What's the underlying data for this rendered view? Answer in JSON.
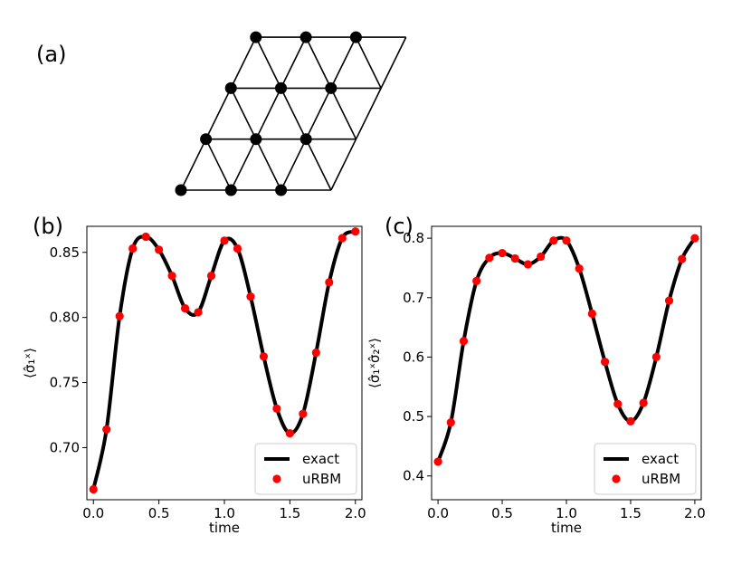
{
  "panels": {
    "a": "(a)",
    "b": "(b)",
    "c": "(c)"
  },
  "lattice": {
    "description_rows": [
      {
        "sites": 3,
        "filled": true
      },
      {
        "sites": 3,
        "filled": true
      },
      {
        "sites": 3,
        "filled": true
      },
      {
        "sites": 3,
        "filled": true
      }
    ],
    "colors": {
      "edge": "#000000",
      "site": "#000000"
    }
  },
  "chart_data": [
    {
      "type": "line",
      "panel": "(b)",
      "xlabel": "time",
      "ylabel": "⟨σ̂₁ˣ⟩",
      "xlim": [
        -0.05,
        2.05
      ],
      "ylim": [
        0.66,
        0.87
      ],
      "xticks": [
        0.0,
        0.5,
        1.0,
        1.5,
        2.0
      ],
      "xtick_labels": [
        "0.0",
        "0.5",
        "1.0",
        "1.5",
        "2.0"
      ],
      "yticks": [
        0.7,
        0.75,
        0.8,
        0.85
      ],
      "ytick_labels": [
        "0.70",
        "0.75",
        "0.80",
        "0.85"
      ],
      "legend_position": "bottom-right",
      "series": [
        {
          "name": "exact",
          "style": "line",
          "color": "#000000",
          "x": [
            0.0,
            0.1,
            0.2,
            0.3,
            0.4,
            0.5,
            0.6,
            0.7,
            0.8,
            0.9,
            1.0,
            1.1,
            1.2,
            1.3,
            1.4,
            1.5,
            1.6,
            1.7,
            1.8,
            1.9,
            2.0
          ],
          "values": [
            0.668,
            0.714,
            0.801,
            0.853,
            0.862,
            0.852,
            0.832,
            0.807,
            0.804,
            0.832,
            0.859,
            0.853,
            0.816,
            0.77,
            0.73,
            0.711,
            0.726,
            0.773,
            0.827,
            0.861,
            0.866
          ]
        },
        {
          "name": "uRBM",
          "style": "marker",
          "color": "#ff0000",
          "x": [
            0.0,
            0.1,
            0.2,
            0.3,
            0.4,
            0.5,
            0.6,
            0.7,
            0.8,
            0.9,
            1.0,
            1.1,
            1.2,
            1.3,
            1.4,
            1.5,
            1.6,
            1.7,
            1.8,
            1.9,
            2.0
          ],
          "values": [
            0.668,
            0.714,
            0.801,
            0.853,
            0.862,
            0.852,
            0.832,
            0.807,
            0.804,
            0.832,
            0.859,
            0.853,
            0.816,
            0.77,
            0.73,
            0.711,
            0.726,
            0.773,
            0.827,
            0.861,
            0.866
          ]
        }
      ]
    },
    {
      "type": "line",
      "panel": "(c)",
      "xlabel": "time",
      "ylabel": "⟨σ̂₁ˣσ̂₂ˣ⟩",
      "xlim": [
        -0.05,
        2.05
      ],
      "ylim": [
        0.36,
        0.82
      ],
      "xticks": [
        0.0,
        0.5,
        1.0,
        1.5,
        2.0
      ],
      "xtick_labels": [
        "0.0",
        "0.5",
        "1.0",
        "1.5",
        "2.0"
      ],
      "yticks": [
        0.4,
        0.5,
        0.6,
        0.7,
        0.8
      ],
      "ytick_labels": [
        "0.4",
        "0.5",
        "0.6",
        "0.7",
        "0.8"
      ],
      "legend_position": "bottom-right",
      "series": [
        {
          "name": "exact",
          "style": "line",
          "color": "#000000",
          "x": [
            0.0,
            0.1,
            0.2,
            0.3,
            0.4,
            0.5,
            0.6,
            0.7,
            0.8,
            0.9,
            1.0,
            1.1,
            1.2,
            1.3,
            1.4,
            1.5,
            1.6,
            1.7,
            1.8,
            1.9,
            2.0
          ],
          "values": [
            0.424,
            0.49,
            0.627,
            0.728,
            0.767,
            0.775,
            0.766,
            0.756,
            0.769,
            0.796,
            0.796,
            0.749,
            0.673,
            0.592,
            0.521,
            0.492,
            0.523,
            0.6,
            0.695,
            0.765,
            0.8
          ]
        },
        {
          "name": "uRBM",
          "style": "marker",
          "color": "#ff0000",
          "x": [
            0.0,
            0.1,
            0.2,
            0.3,
            0.4,
            0.5,
            0.6,
            0.7,
            0.8,
            0.9,
            1.0,
            1.1,
            1.2,
            1.3,
            1.4,
            1.5,
            1.6,
            1.7,
            1.8,
            1.9,
            2.0
          ],
          "values": [
            0.424,
            0.49,
            0.627,
            0.728,
            0.767,
            0.775,
            0.766,
            0.756,
            0.769,
            0.796,
            0.796,
            0.749,
            0.673,
            0.592,
            0.521,
            0.492,
            0.523,
            0.6,
            0.695,
            0.765,
            0.8
          ]
        }
      ]
    }
  ]
}
